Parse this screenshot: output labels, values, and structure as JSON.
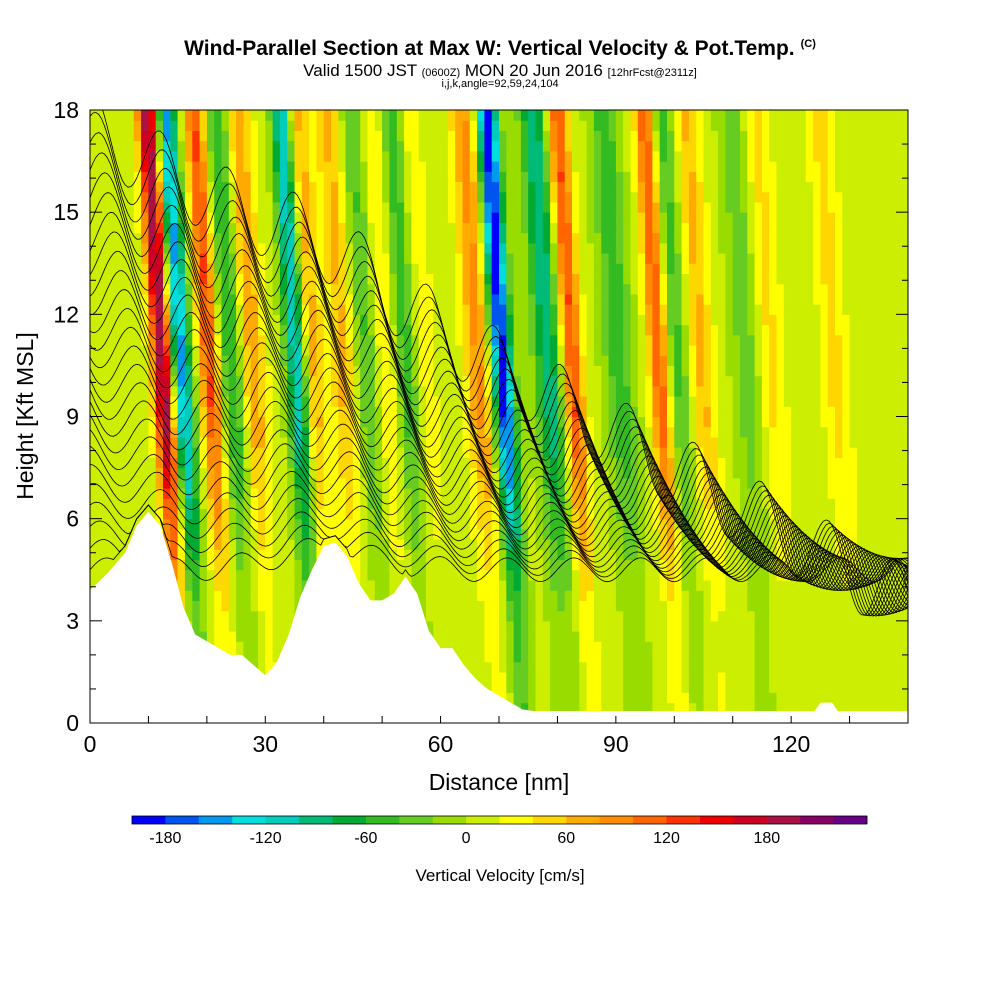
{
  "header": {
    "title": "Wind-Parallel Section at Max W: Vertical Velocity & Pot.Temp.",
    "title_mark": "(C)",
    "valid_prefix": "Valid 1500 JST",
    "valid_utc": "(0600Z)",
    "valid_date": "MON 20 Jun 2016",
    "forecast": "[12hrFcst@2311z]",
    "indices": "i,j,k,angle=92,59,24,104"
  },
  "chart_data": {
    "type": "heatmap",
    "title": "Wind-Parallel Section at Max W: Vertical Velocity & Pot.Temp.",
    "xlabel": "Distance [nm]",
    "ylabel": "Height [Kft MSL]",
    "xlim": [
      0,
      140
    ],
    "ylim": [
      0,
      18
    ],
    "xticks": [
      "0",
      "30",
      "60",
      "90",
      "120"
    ],
    "xtick_values": [
      0,
      30,
      60,
      90,
      120
    ],
    "yticks": [
      "0",
      "3",
      "6",
      "9",
      "12",
      "15",
      "18"
    ],
    "ytick_values": [
      0,
      3,
      6,
      9,
      12,
      15,
      18
    ],
    "colorbar": {
      "label": "Vertical Velocity [cm/s]",
      "tick_labels": [
        "-180",
        "-120",
        "-60",
        "0",
        "60",
        "120",
        "180"
      ],
      "tick_values": [
        -180,
        -120,
        -60,
        0,
        60,
        120,
        180
      ],
      "levels": [
        -200,
        -180,
        -160,
        -140,
        -120,
        -100,
        -80,
        -60,
        -40,
        -20,
        0,
        20,
        40,
        60,
        80,
        100,
        120,
        140,
        160,
        180,
        200,
        220
      ],
      "colors": [
        "#0000ff",
        "#0055ee",
        "#0099ee",
        "#00dddd",
        "#00ccbb",
        "#00bb77",
        "#00aa33",
        "#33bb22",
        "#66cc22",
        "#99dd00",
        "#ccee00",
        "#ffff00",
        "#ffd700",
        "#ffaa00",
        "#ff8c00",
        "#ff6600",
        "#ff3300",
        "#ee0000",
        "#cc0022",
        "#aa1144",
        "#880066",
        "#660088"
      ]
    },
    "updraft_bands_nm": [
      {
        "x": 13,
        "peak": 200
      },
      {
        "x": 21,
        "peak": 120
      },
      {
        "x": 28,
        "peak": 80
      },
      {
        "x": 38,
        "peak": 80
      },
      {
        "x": 44,
        "peak": 60
      },
      {
        "x": 51,
        "peak": 50
      },
      {
        "x": 57,
        "peak": 50
      },
      {
        "x": 67,
        "peak": 80
      },
      {
        "x": 83,
        "peak": 120
      },
      {
        "x": 98,
        "peak": 120
      },
      {
        "x": 105,
        "peak": 60
      },
      {
        "x": 117,
        "peak": 40
      },
      {
        "x": 128,
        "peak": 40
      }
    ],
    "downdraft_bands_nm": [
      {
        "x": 16,
        "peak": -160
      },
      {
        "x": 25,
        "peak": -80
      },
      {
        "x": 36,
        "peak": -160
      },
      {
        "x": 48,
        "peak": -60
      },
      {
        "x": 55,
        "peak": -80
      },
      {
        "x": 71,
        "peak": -200
      },
      {
        "x": 79,
        "peak": -100
      },
      {
        "x": 91,
        "peak": -60
      },
      {
        "x": 101,
        "peak": -60
      },
      {
        "x": 113,
        "peak": -40
      }
    ],
    "terrain_kft": {
      "x": [
        0,
        3,
        6,
        8,
        10,
        12,
        14,
        16,
        18,
        20,
        22,
        24,
        26,
        28,
        30,
        32,
        34,
        36,
        38,
        40,
        42,
        44,
        46,
        48,
        50,
        52,
        54,
        56,
        58,
        60,
        62,
        64,
        66,
        68,
        70,
        72,
        74,
        76,
        78,
        80,
        82,
        84,
        86,
        88,
        90,
        92,
        94,
        96,
        98,
        100,
        102,
        104,
        106,
        108,
        110,
        112,
        114,
        116,
        118,
        120,
        122,
        124,
        125,
        127,
        128,
        130,
        132,
        134,
        136,
        138,
        140
      ],
      "y": [
        3.9,
        4.4,
        5.0,
        5.8,
        6.2,
        5.8,
        4.7,
        3.4,
        2.6,
        2.4,
        2.2,
        2.0,
        2.0,
        1.7,
        1.4,
        1.8,
        2.6,
        3.7,
        4.5,
        5.2,
        5.3,
        4.9,
        4.1,
        3.6,
        3.6,
        3.8,
        4.3,
        3.8,
        2.7,
        2.2,
        2.2,
        1.7,
        1.3,
        1.0,
        0.8,
        0.6,
        0.4,
        0.35,
        0.35,
        0.35,
        0.35,
        0.35,
        0.35,
        0.35,
        0.35,
        0.35,
        0.35,
        0.35,
        0.35,
        0.35,
        0.35,
        0.35,
        0.35,
        0.35,
        0.35,
        0.35,
        0.35,
        0.35,
        0.35,
        0.35,
        0.35,
        0.35,
        0.6,
        0.6,
        0.35,
        0.35,
        0.35,
        0.35,
        0.35,
        0.35,
        0.35
      ]
    },
    "theta_contour_count": 26,
    "grid": false
  }
}
